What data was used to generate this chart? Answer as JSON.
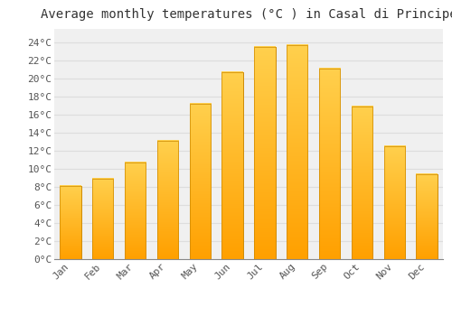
{
  "title": "Average monthly temperatures (°C ) in Casal di Principe",
  "months": [
    "Jan",
    "Feb",
    "Mar",
    "Apr",
    "May",
    "Jun",
    "Jul",
    "Aug",
    "Sep",
    "Oct",
    "Nov",
    "Dec"
  ],
  "values": [
    8.1,
    8.9,
    10.7,
    13.1,
    17.2,
    20.7,
    23.5,
    23.7,
    21.1,
    16.9,
    12.5,
    9.4
  ],
  "bar_color_top": "#FFD04D",
  "bar_color_bottom": "#FFA000",
  "bar_edge_color": "#CC8800",
  "background_color": "#FFFFFF",
  "plot_bg_color": "#F0F0F0",
  "grid_color": "#DDDDDD",
  "ytick_labels": [
    "0°C",
    "2°C",
    "4°C",
    "6°C",
    "8°C",
    "10°C",
    "12°C",
    "14°C",
    "16°C",
    "18°C",
    "20°C",
    "22°C",
    "24°C"
  ],
  "ytick_values": [
    0,
    2,
    4,
    6,
    8,
    10,
    12,
    14,
    16,
    18,
    20,
    22,
    24
  ],
  "ylim": [
    0,
    25.5
  ],
  "title_fontsize": 10,
  "tick_fontsize": 8,
  "font_family": "monospace",
  "bar_width": 0.65
}
